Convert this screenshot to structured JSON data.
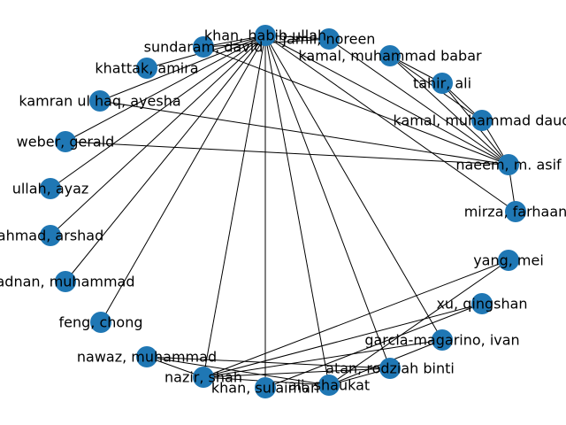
{
  "graph": {
    "node_color": "#1f77b4",
    "edge_color": "#000000",
    "nodes": [
      {
        "id": "khan_habib",
        "label": "khan, habib ullah"
      },
      {
        "id": "jamil_noreen",
        "label": "jamil, noreen"
      },
      {
        "id": "kamal_babar",
        "label": "kamal, muhammad babar"
      },
      {
        "id": "tahir_ali",
        "label": "tahir, ali"
      },
      {
        "id": "kamal_daud",
        "label": "kamal, muhammad daud"
      },
      {
        "id": "naeem_asif",
        "label": "naeem, m. asif"
      },
      {
        "id": "mirza_farhaan",
        "label": "mirza, farhaan"
      },
      {
        "id": "yang_mei",
        "label": "yang, mei"
      },
      {
        "id": "xu_qingshan",
        "label": "xu, qingshan"
      },
      {
        "id": "garcia_ivan",
        "label": "garcia-magarino, ivan"
      },
      {
        "id": "atan_rodziah",
        "label": "atan, rodziah binti"
      },
      {
        "id": "ali_shaukat",
        "label": "ali, shaukat"
      },
      {
        "id": "khan_sulaiman",
        "label": "khan, sulaiman"
      },
      {
        "id": "nazir_shah",
        "label": "nazir, shah"
      },
      {
        "id": "nawaz_muhammad",
        "label": "nawaz, muhammad"
      },
      {
        "id": "feng_chong",
        "label": "feng, chong"
      },
      {
        "id": "adnan_muhammad",
        "label": "adnan, muhammad"
      },
      {
        "id": "ahmad_arshad",
        "label": "ahmad, arshad"
      },
      {
        "id": "ullah_ayaz",
        "label": "ullah, ayaz"
      },
      {
        "id": "weber_gerald",
        "label": "weber, gerald"
      },
      {
        "id": "kamran_ayesha",
        "label": "kamran ul haq, ayesha"
      },
      {
        "id": "khattak_amira",
        "label": "khattak, amira"
      },
      {
        "id": "sundaram_david",
        "label": "sundaram, david"
      }
    ],
    "edges": [
      [
        "khan_habib",
        "jamil_noreen"
      ],
      [
        "khan_habib",
        "naeem_asif"
      ],
      [
        "khan_habib",
        "mirza_farhaan"
      ],
      [
        "khan_habib",
        "garcia_ivan"
      ],
      [
        "khan_habib",
        "atan_rodziah"
      ],
      [
        "khan_habib",
        "ali_shaukat"
      ],
      [
        "khan_habib",
        "khan_sulaiman"
      ],
      [
        "khan_habib",
        "nazir_shah"
      ],
      [
        "khan_habib",
        "feng_chong"
      ],
      [
        "khan_habib",
        "adnan_muhammad"
      ],
      [
        "khan_habib",
        "ahmad_arshad"
      ],
      [
        "khan_habib",
        "ullah_ayaz"
      ],
      [
        "khan_habib",
        "weber_gerald"
      ],
      [
        "khan_habib",
        "kamran_ayesha"
      ],
      [
        "khan_habib",
        "khattak_amira"
      ],
      [
        "khan_habib",
        "sundaram_david"
      ],
      [
        "jamil_noreen",
        "sundaram_david"
      ],
      [
        "jamil_noreen",
        "naeem_asif"
      ],
      [
        "kamal_babar",
        "tahir_ali"
      ],
      [
        "kamal_babar",
        "kamal_daud"
      ],
      [
        "kamal_babar",
        "naeem_asif"
      ],
      [
        "tahir_ali",
        "kamal_daud"
      ],
      [
        "tahir_ali",
        "naeem_asif"
      ],
      [
        "kamal_daud",
        "naeem_asif"
      ],
      [
        "naeem_asif",
        "mirza_farhaan"
      ],
      [
        "naeem_asif",
        "sundaram_david"
      ],
      [
        "naeem_asif",
        "kamran_ayesha"
      ],
      [
        "naeem_asif",
        "weber_gerald"
      ],
      [
        "yang_mei",
        "nazir_shah"
      ],
      [
        "yang_mei",
        "ali_shaukat"
      ],
      [
        "xu_qingshan",
        "khan_sulaiman"
      ],
      [
        "xu_qingshan",
        "nazir_shah"
      ],
      [
        "garcia_ivan",
        "nazir_shah"
      ],
      [
        "garcia_ivan",
        "ali_shaukat"
      ],
      [
        "atan_rodziah",
        "nazir_shah"
      ],
      [
        "atan_rodziah",
        "ali_shaukat"
      ],
      [
        "atan_rodziah",
        "nawaz_muhammad"
      ],
      [
        "ali_shaukat",
        "nazir_shah"
      ],
      [
        "ali_shaukat",
        "nawaz_muhammad"
      ],
      [
        "nazir_shah",
        "nawaz_muhammad"
      ]
    ]
  }
}
